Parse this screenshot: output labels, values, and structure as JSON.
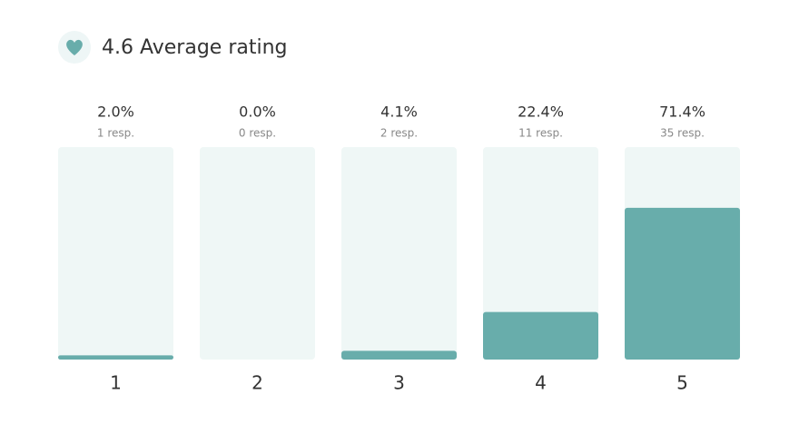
{
  "chart_data": {
    "type": "bar",
    "title": "4.6 Average rating",
    "categories": [
      "1",
      "2",
      "3",
      "4",
      "5"
    ],
    "values": [
      2.0,
      0.0,
      4.1,
      22.4,
      71.4
    ],
    "value_labels": [
      "2.0%",
      "0.0%",
      "4.1%",
      "22.4%",
      "71.4%"
    ],
    "responses": [
      "1 resp.",
      "0 resp.",
      "2 resp.",
      "11 resp.",
      "35 resp."
    ],
    "color": "#68adab",
    "ylim": [
      0,
      100
    ]
  }
}
